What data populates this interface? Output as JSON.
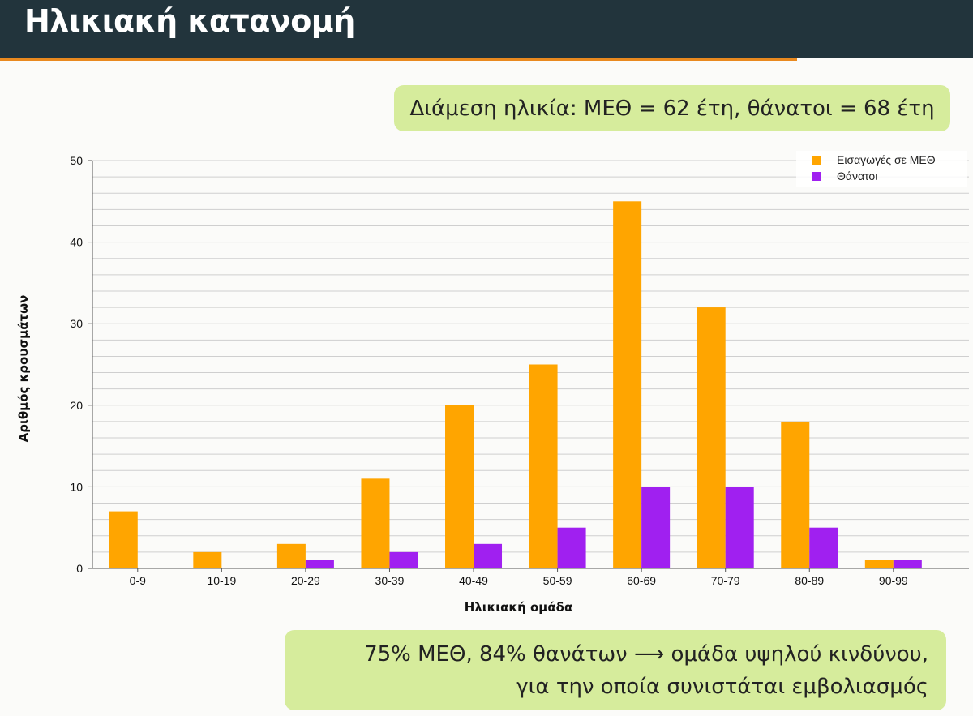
{
  "slide": {
    "title": "Ηλικιακή κατανομή",
    "median_callout": "Διάμεση ηλικία: ΜΕΘ = 62 έτη, θάνατοι = 68 έτη",
    "risk_callout_line1": "75% ΜΕΘ, 84% θανάτων ⟶ ομάδα υψηλού κινδύνου,",
    "risk_callout_line2": "για την οποία συνιστάται εμβολιασμός"
  },
  "colors": {
    "header_bg": "#22343c",
    "accent": "#e9891f",
    "callout_bg": "#d6ec9c",
    "icu": "#ffa500",
    "deaths": "#a020f0"
  },
  "chart_data": {
    "type": "bar",
    "categories": [
      "0-9",
      "10-19",
      "20-29",
      "30-39",
      "40-49",
      "50-59",
      "60-69",
      "70-79",
      "80-89",
      "90-99"
    ],
    "series": [
      {
        "name": "Εισαγωγές σε ΜΕΘ",
        "values": [
          7,
          2,
          3,
          11,
          20,
          25,
          45,
          32,
          18,
          1
        ]
      },
      {
        "name": "Θάνατοι",
        "values": [
          0,
          0,
          1,
          2,
          3,
          5,
          10,
          10,
          5,
          1
        ]
      }
    ],
    "xlabel": "Ηλικιακή ομάδα",
    "ylabel": "Αριθμός κρουσμάτων",
    "ylim": [
      0,
      50
    ],
    "yticks": [
      0,
      10,
      20,
      30,
      40,
      50
    ],
    "minor_grid_step": 2,
    "grid": true,
    "legend_position": "top-right"
  }
}
